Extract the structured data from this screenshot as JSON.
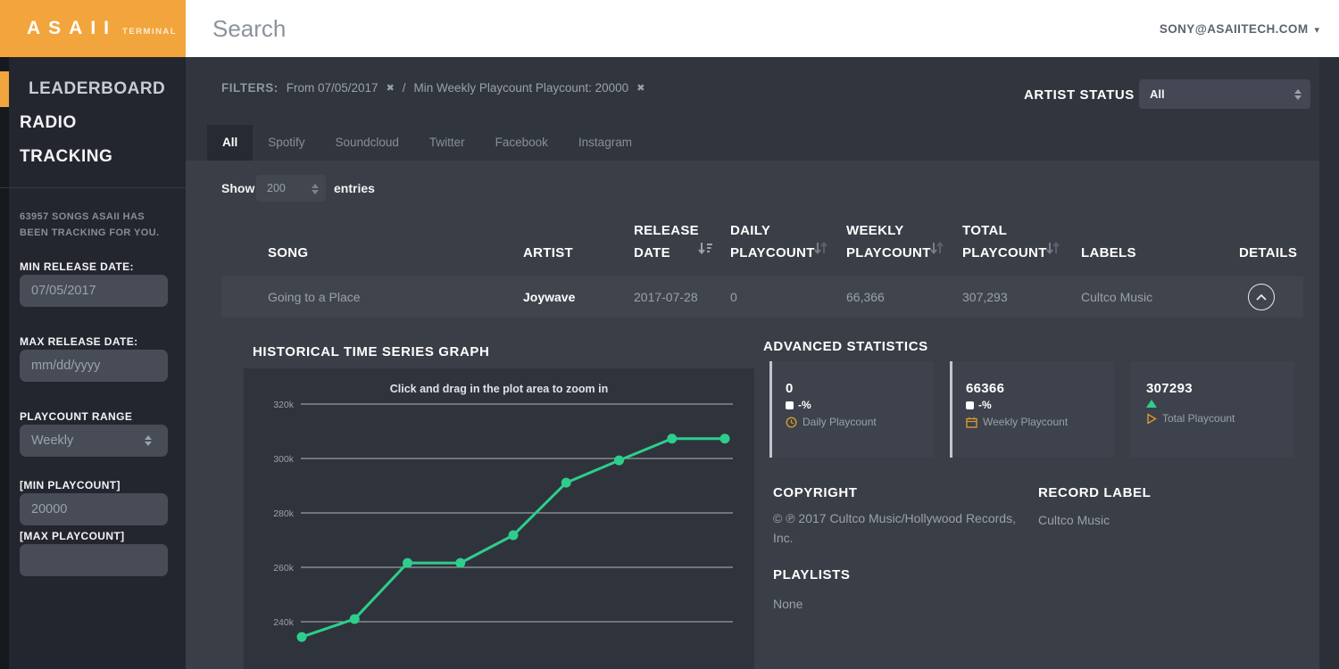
{
  "colors": {
    "accent_orange": "#F2A53C",
    "accent_green": "#2DCE8C"
  },
  "header": {
    "logo": "ASAII",
    "logo_sub": "TERMINAL",
    "search_placeholder": "Search",
    "account_email": "SONY@ASAIITECH.COM"
  },
  "sidebar": {
    "nav": [
      {
        "label": "LEADERBOARD"
      },
      {
        "label": "RADIO"
      },
      {
        "label": "TRACKING"
      }
    ],
    "tracking_note": "63957 SONGS ASAII HAS BEEN TRACKING FOR YOU.",
    "min_release_date": {
      "label": "MIN RELEASE DATE:",
      "value": "07/05/2017"
    },
    "max_release_date": {
      "label": "MAX RELEASE DATE:",
      "placeholder": "mm/dd/yyyy"
    },
    "playcount_range": {
      "label": "PLAYCOUNT RANGE",
      "value": "Weekly"
    },
    "min_playcount": {
      "label": "[MIN PLAYCOUNT]",
      "value": "20000"
    },
    "max_playcount": {
      "label": "[MAX PLAYCOUNT]",
      "value": ""
    }
  },
  "filters": {
    "label": "FILTERS:",
    "item1": "From 07/05/2017",
    "separator": "/",
    "item2": "Min Weekly Playcount Playcount: 20000"
  },
  "artist_status": {
    "label": "ARTIST STATUS",
    "value": "All"
  },
  "tabs": [
    {
      "label": "All"
    },
    {
      "label": "Spotify"
    },
    {
      "label": "Soundcloud"
    },
    {
      "label": "Twitter"
    },
    {
      "label": "Facebook"
    },
    {
      "label": "Instagram"
    }
  ],
  "entries_control": {
    "show": "Show",
    "value": "200",
    "entries": "entries"
  },
  "table": {
    "columns": {
      "song": "SONG",
      "artist": "ARTIST",
      "release_date": "RELEASE DATE",
      "daily": "DAILY PLAYCOUNT",
      "weekly": "WEEKLY PLAYCOUNT",
      "total": "TOTAL PLAYCOUNT",
      "labels": "LABELS",
      "details": "DETAILS"
    },
    "row": {
      "song": "Going to a Place",
      "artist": "Joywave",
      "release_date": "2017-07-28",
      "daily_playcount": "0",
      "weekly_playcount": "66,366",
      "total_playcount": "307,293",
      "labels": "Cultco Music"
    }
  },
  "chart_data": {
    "type": "line",
    "title": "HISTORICAL TIME SERIES GRAPH",
    "note": "Click and drag in the plot area to zoom in",
    "grid": true,
    "legend": false,
    "y_axis": {
      "ticks": [
        320000,
        300000,
        280000,
        260000,
        240000
      ],
      "tick_labels": [
        "320k",
        "300k",
        "280k",
        "260k",
        "240k"
      ]
    },
    "x_axis": {
      "labels_visible": false
    },
    "series": [
      {
        "name": "Total Playcount",
        "color": "#2DCE8C",
        "values": [
          234400,
          241000,
          261600,
          261600,
          271800,
          291100,
          299300,
          307293,
          307293
        ]
      }
    ]
  },
  "advanced_stats": {
    "title": "ADVANCED STATISTICS",
    "cards": [
      {
        "value": "0",
        "change": "-%",
        "label": "Daily Playcount"
      },
      {
        "value": "66366",
        "change": "-%",
        "label": "Weekly Playcount"
      },
      {
        "value": "307293",
        "trend": "up",
        "label": "Total Playcount"
      }
    ]
  },
  "details_panel": {
    "copyright": {
      "label": "COPYRIGHT",
      "text": "© ℗ 2017 Cultco Music/Hollywood Records, Inc."
    },
    "record_label": {
      "label": "RECORD LABEL",
      "value": "Cultco Music"
    },
    "playlists": {
      "label": "PLAYLISTS",
      "value": "None"
    }
  }
}
